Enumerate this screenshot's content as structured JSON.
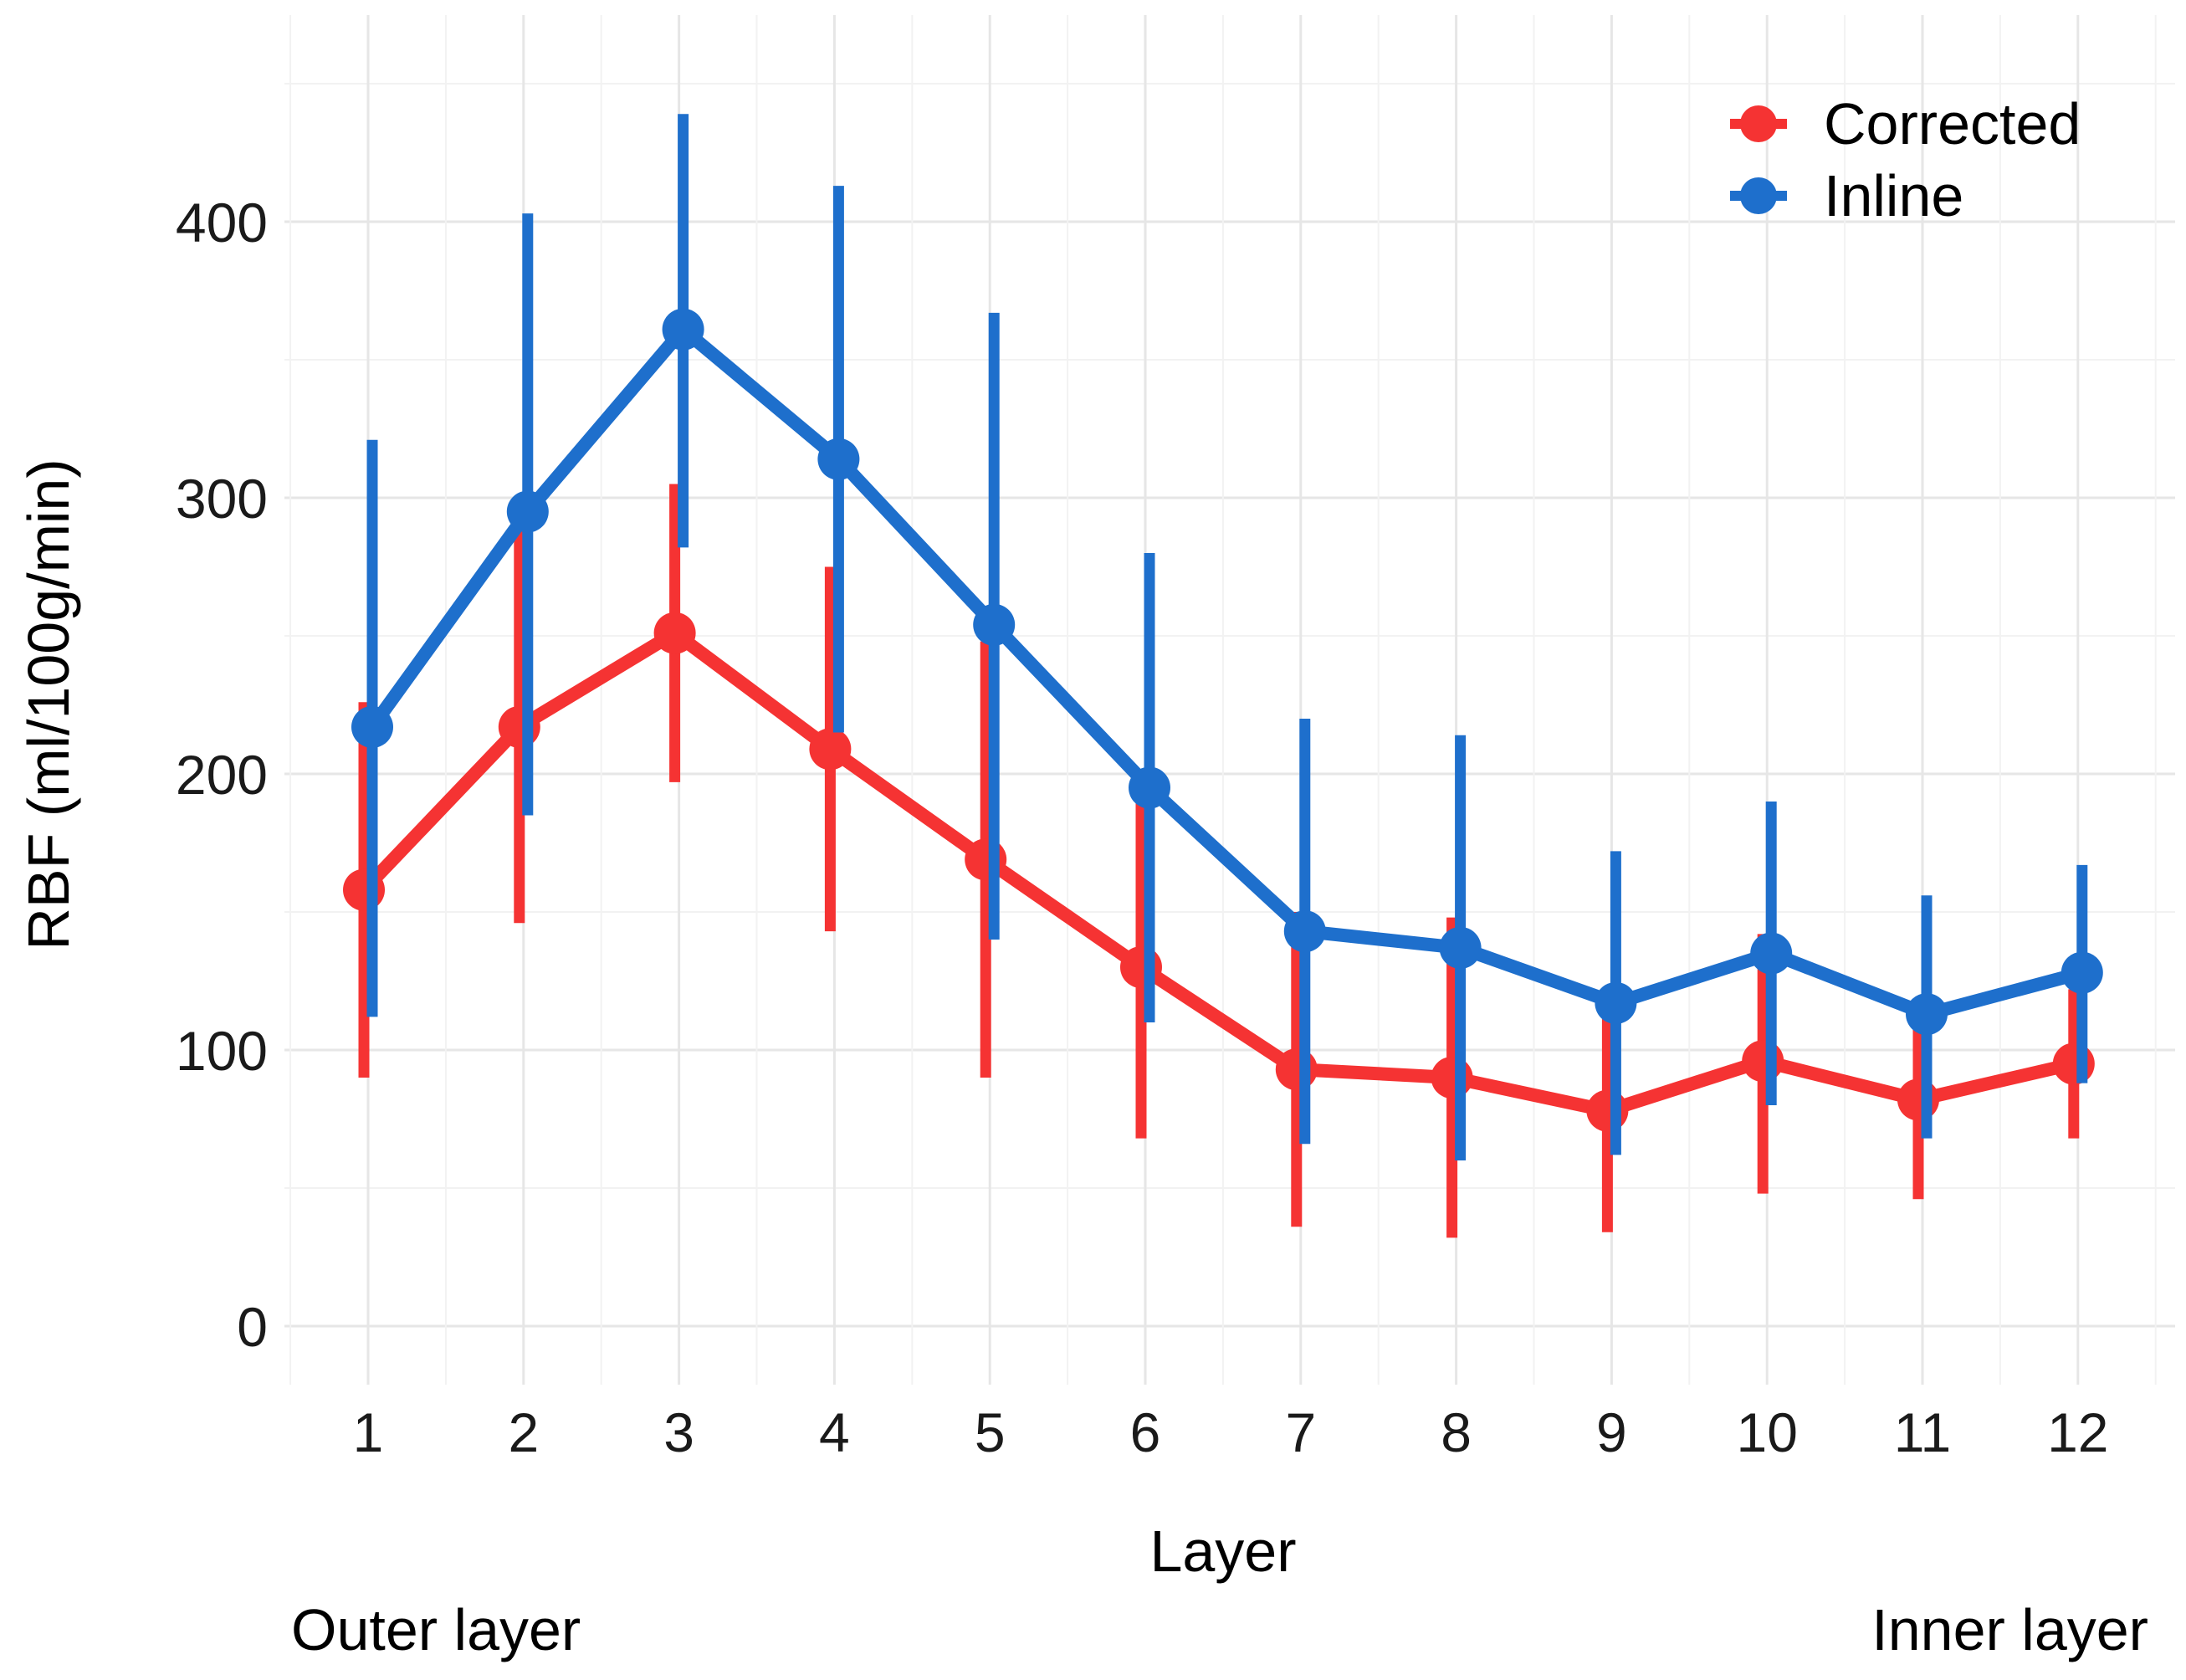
{
  "chart_data": {
    "type": "line",
    "title": "",
    "xlabel": "Layer",
    "ylabel": "RBF (ml/100g/min)",
    "x_endpoint_labels": {
      "left": "Outer layer",
      "right": "Inner layer"
    },
    "categories": [
      "1",
      "2",
      "3",
      "4",
      "5",
      "6",
      "7",
      "8",
      "9",
      "10",
      "11",
      "12"
    ],
    "ylim": [
      -20,
      460
    ],
    "yticks": [
      0,
      100,
      200,
      300,
      400
    ],
    "ytick_labels": [
      "0",
      "100",
      "200",
      "300",
      "400"
    ],
    "grid": true,
    "legend_position": "top-right",
    "error_bars": true,
    "series": [
      {
        "name": "Corrected",
        "color": "#f53333",
        "values": [
          158,
          217,
          251,
          209,
          169,
          130,
          93,
          90,
          78,
          96,
          82,
          95
        ],
        "lower": [
          90,
          146,
          197,
          143,
          90,
          68,
          36,
          32,
          34,
          48,
          46,
          68
        ],
        "upper": [
          226,
          288,
          305,
          275,
          248,
          190,
          150,
          148,
          122,
          142,
          116,
          122
        ]
      },
      {
        "name": "Inline",
        "color": "#1e6fcc",
        "values": [
          217,
          295,
          361,
          314,
          254,
          195,
          143,
          137,
          117,
          135,
          113,
          128
        ],
        "lower": [
          112,
          185,
          282,
          215,
          140,
          110,
          66,
          60,
          62,
          80,
          68,
          88
        ],
        "upper": [
          321,
          403,
          439,
          413,
          367,
          280,
          220,
          214,
          172,
          190,
          156,
          167
        ]
      }
    ]
  }
}
